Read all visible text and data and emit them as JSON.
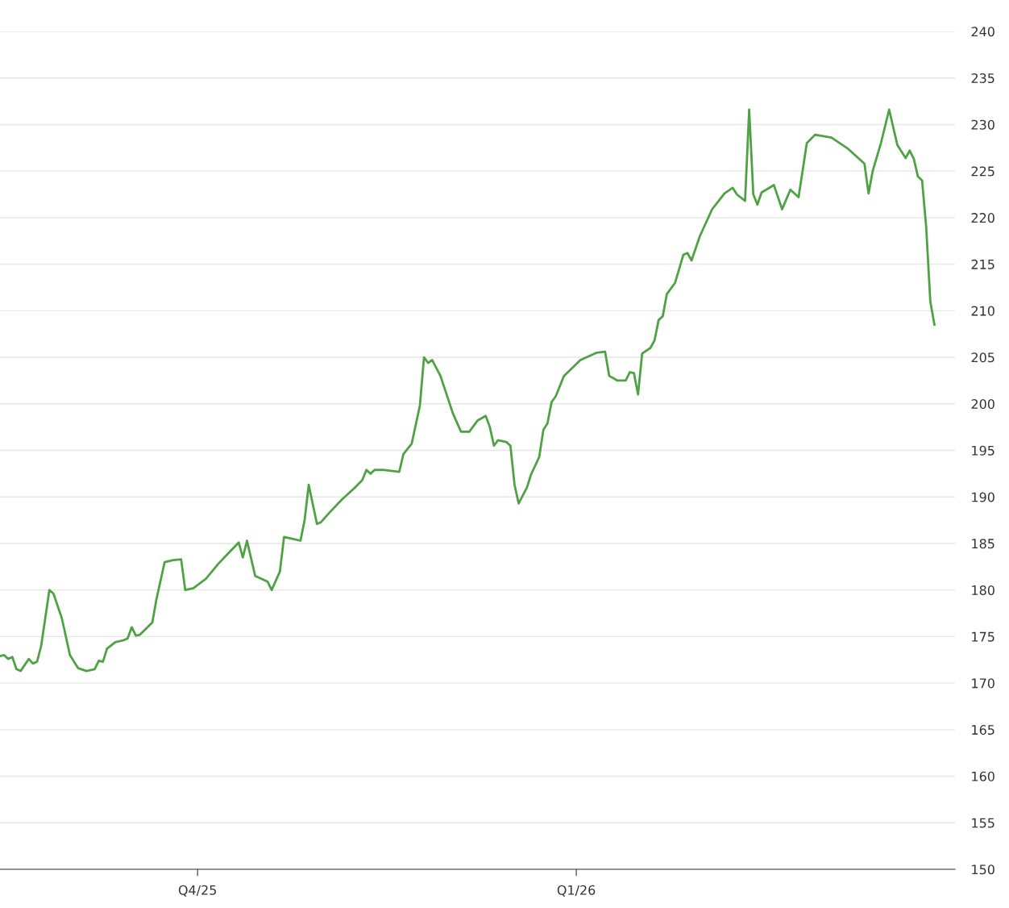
{
  "chart_data": {
    "type": "line",
    "tick_labels": "xy",
    "xlim": [
      "2025-08-14",
      "2026-04-03"
    ],
    "xticks": [
      {
        "value": "2025-10-01",
        "label": "Q4/25"
      },
      {
        "value": "2026-01-01",
        "label": "Q1/26"
      }
    ],
    "ylim": [
      150,
      240
    ],
    "yticks": [
      150,
      155,
      160,
      165,
      170,
      175,
      180,
      185,
      190,
      195,
      200,
      205,
      210,
      215,
      220,
      225,
      230,
      235,
      240
    ],
    "grid": "y",
    "marker": "none",
    "line_style": "solid",
    "series": [
      {
        "color": "#4ea243",
        "x": [
          "2025-08-14",
          "2025-08-15",
          "2025-08-16",
          "2025-08-17",
          "2025-08-18",
          "2025-08-19",
          "2025-08-21",
          "2025-08-22",
          "2025-08-23",
          "2025-08-24",
          "2025-08-26",
          "2025-08-27",
          "2025-08-29",
          "2025-08-31",
          "2025-09-02",
          "2025-09-04",
          "2025-09-06",
          "2025-09-07",
          "2025-09-08",
          "2025-09-09",
          "2025-09-11",
          "2025-09-13",
          "2025-09-14",
          "2025-09-15",
          "2025-09-16",
          "2025-09-17",
          "2025-09-20",
          "2025-09-21",
          "2025-09-23",
          "2025-09-25",
          "2025-09-27",
          "2025-09-28",
          "2025-09-30",
          "2025-10-03",
          "2025-10-06",
          "2025-10-09",
          "2025-10-11",
          "2025-10-12",
          "2025-10-13",
          "2025-10-15",
          "2025-10-18",
          "2025-10-19",
          "2025-10-20",
          "2025-10-21",
          "2025-10-22",
          "2025-10-24",
          "2025-10-26",
          "2025-10-27",
          "2025-10-28",
          "2025-10-30",
          "2025-10-31",
          "2025-11-02",
          "2025-11-05",
          "2025-11-08",
          "2025-11-10",
          "2025-11-11",
          "2025-11-12",
          "2025-11-13",
          "2025-11-15",
          "2025-11-19",
          "2025-11-20",
          "2025-11-22",
          "2025-11-24",
          "2025-11-25",
          "2025-11-26",
          "2025-11-27",
          "2025-11-29",
          "2025-12-02",
          "2025-12-04",
          "2025-12-06",
          "2025-12-08",
          "2025-12-10",
          "2025-12-11",
          "2025-12-12",
          "2025-12-13",
          "2025-12-15",
          "2025-12-16",
          "2025-12-17",
          "2025-12-18",
          "2025-12-20",
          "2025-12-21",
          "2025-12-23",
          "2025-12-24",
          "2025-12-25",
          "2025-12-26",
          "2025-12-27",
          "2025-12-29",
          "2026-01-02",
          "2026-01-06",
          "2026-01-08",
          "2026-01-09",
          "2026-01-11",
          "2026-01-13",
          "2026-01-14",
          "2026-01-15",
          "2026-01-16",
          "2026-01-17",
          "2026-01-19",
          "2026-01-20",
          "2026-01-21",
          "2026-01-22",
          "2026-01-23",
          "2026-01-25",
          "2026-01-27",
          "2026-01-28",
          "2026-01-29",
          "2026-01-31",
          "2026-02-03",
          "2026-02-06",
          "2026-02-08",
          "2026-02-09",
          "2026-02-11",
          "2026-02-12",
          "2026-02-13",
          "2026-02-14",
          "2026-02-15",
          "2026-02-18",
          "2026-02-20",
          "2026-02-22",
          "2026-02-24",
          "2026-02-26",
          "2026-02-28",
          "2026-03-04",
          "2026-03-08",
          "2026-03-12",
          "2026-03-13",
          "2026-03-14",
          "2026-03-16",
          "2026-03-18",
          "2026-03-20",
          "2026-03-21",
          "2026-03-22",
          "2026-03-23",
          "2026-03-24",
          "2026-03-25",
          "2026-03-26",
          "2026-03-27",
          "2026-03-28",
          "2026-03-29"
        ],
        "values": [
          172.9,
          173.0,
          172.6,
          172.8,
          171.5,
          171.3,
          172.6,
          172.1,
          172.3,
          174,
          180,
          179.6,
          177,
          173,
          171.6,
          171.3,
          171.5,
          172.4,
          172.3,
          173.7,
          174.4,
          174.6,
          174.8,
          176,
          175.1,
          175.2,
          176.5,
          179,
          183,
          183.2,
          183.3,
          180,
          180.2,
          181.2,
          182.8,
          184.2,
          185.1,
          183.5,
          185.3,
          181.5,
          180.9,
          180,
          181,
          182,
          185.7,
          185.5,
          185.3,
          187.5,
          191.3,
          187.1,
          187.3,
          188.3,
          189.7,
          190.9,
          191.8,
          192.9,
          192.5,
          192.9,
          192.9,
          192.7,
          194.6,
          195.7,
          199.8,
          205,
          204.4,
          204.7,
          203,
          199,
          197,
          197,
          198.2,
          198.7,
          197.5,
          195.5,
          196.1,
          195.9,
          195.5,
          191.3,
          189.3,
          191,
          192.4,
          194.3,
          197.2,
          197.9,
          200.2,
          200.8,
          203,
          204.7,
          205.5,
          205.6,
          203,
          202.5,
          202.5,
          203.4,
          203.3,
          201,
          205.4,
          206,
          206.8,
          209,
          209.4,
          211.8,
          213,
          216,
          216.2,
          215.4,
          218,
          220.9,
          222.6,
          223.2,
          222.5,
          221.8,
          231.6,
          222.5,
          221.4,
          222.7,
          223.5,
          220.9,
          223.0,
          222.2,
          228,
          228.9,
          228.6,
          227.4,
          225.8,
          222.6,
          225,
          228,
          231.6,
          227.8,
          227.1,
          226.4,
          227.2,
          226.3,
          224.4,
          224,
          219,
          211,
          208.5
        ]
      }
    ]
  }
}
